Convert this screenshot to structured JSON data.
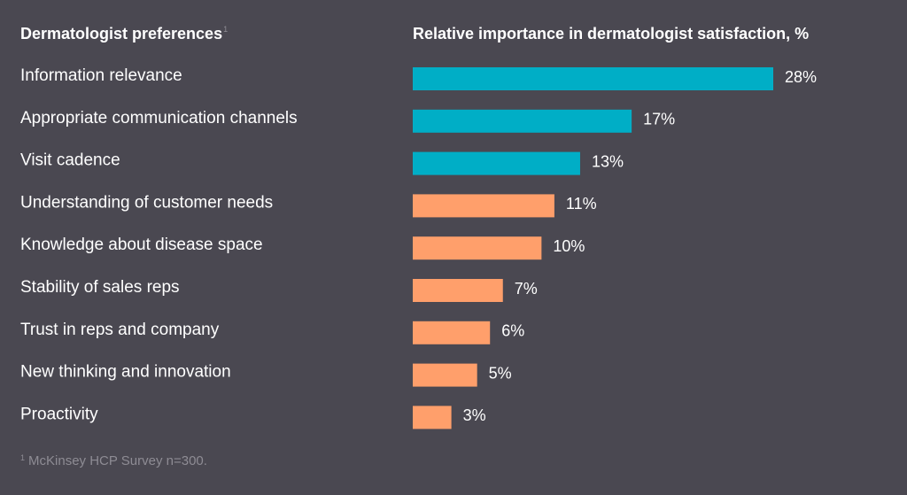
{
  "chart_data": {
    "type": "bar",
    "orientation": "horizontal",
    "row_header": "Dermatologist preferences",
    "row_header_footnote_mark": "1",
    "title": "Relative importance in dermatologist satisfaction, %",
    "categories": [
      "Information relevance",
      "Appropriate communication channels",
      "Visit cadence",
      "Understanding of customer needs",
      "Knowledge about disease space",
      "Stability of sales reps",
      "Trust in reps and company",
      "New thinking and innovation",
      "Proactivity"
    ],
    "values": [
      28,
      17,
      13,
      11,
      10,
      7,
      6,
      5,
      3
    ],
    "value_labels": [
      "28%",
      "17%",
      "13%",
      "11%",
      "10%",
      "7%",
      "6%",
      "5%",
      "3%"
    ],
    "bar_colors": [
      "#00aec6",
      "#00aec6",
      "#00aec6",
      "#ff9f6b",
      "#ff9f6b",
      "#ff9f6b",
      "#ff9f6b",
      "#ff9f6b",
      "#ff9f6b"
    ],
    "xlim": [
      0,
      28
    ],
    "grid": false,
    "legend": "none"
  },
  "footnote": {
    "mark": "1",
    "text": "McKinsey HCP Survey n=300."
  }
}
